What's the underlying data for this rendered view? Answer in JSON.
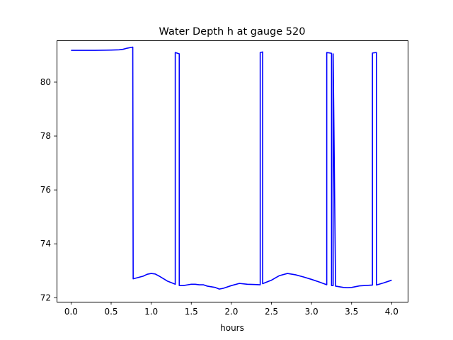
{
  "chart_data": {
    "type": "line",
    "title": "Water Depth h at gauge 520",
    "xlabel": "hours",
    "ylabel": "",
    "xlim": [
      -0.18,
      4.2
    ],
    "ylim": [
      71.85,
      81.55
    ],
    "grid": false,
    "x_ticks": [
      0.0,
      0.5,
      1.0,
      1.5,
      2.0,
      2.5,
      3.0,
      3.5,
      4.0
    ],
    "x_tick_labels": [
      "0.0",
      "0.5",
      "1.0",
      "1.5",
      "2.0",
      "2.5",
      "3.0",
      "3.5",
      "4.0"
    ],
    "y_ticks": [
      72,
      74,
      76,
      78,
      80
    ],
    "y_tick_labels": [
      "72",
      "74",
      "76",
      "78",
      "80"
    ],
    "series": [
      {
        "color": "#0000ff",
        "x": [
          0.0,
          0.3,
          0.5,
          0.6,
          0.65,
          0.7,
          0.77,
          0.775,
          0.8,
          0.9,
          0.95,
          1.0,
          1.05,
          1.1,
          1.2,
          1.3,
          1.3,
          1.35,
          1.35,
          1.4,
          1.5,
          1.55,
          1.6,
          1.65,
          1.7,
          1.8,
          1.85,
          1.9,
          2.0,
          2.1,
          2.2,
          2.3,
          2.36,
          2.36,
          2.39,
          2.39,
          2.5,
          2.6,
          2.7,
          2.8,
          2.9,
          3.0,
          3.1,
          3.19,
          3.19,
          3.25,
          3.25,
          3.27,
          3.27,
          3.3,
          3.4,
          3.45,
          3.5,
          3.6,
          3.76,
          3.76,
          3.81,
          3.81,
          3.9,
          4.0
        ],
        "y": [
          81.18,
          81.18,
          81.19,
          81.2,
          81.22,
          81.26,
          81.3,
          72.7,
          72.72,
          72.8,
          72.87,
          72.9,
          72.88,
          72.8,
          72.62,
          72.5,
          81.1,
          81.05,
          72.45,
          72.45,
          72.5,
          72.5,
          72.48,
          72.48,
          72.43,
          72.38,
          72.32,
          72.35,
          72.45,
          72.53,
          72.5,
          72.49,
          72.48,
          81.1,
          81.12,
          72.52,
          72.65,
          72.82,
          72.9,
          72.85,
          72.77,
          72.68,
          72.58,
          72.48,
          81.1,
          81.07,
          72.45,
          72.45,
          81.05,
          72.43,
          72.38,
          72.37,
          72.38,
          72.44,
          72.47,
          81.08,
          81.1,
          72.47,
          72.55,
          72.65
        ]
      }
    ]
  }
}
